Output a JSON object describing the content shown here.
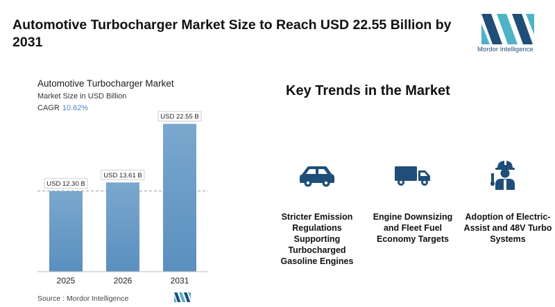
{
  "headline": "Automotive Turbocharger Market Size to Reach USD 22.55 Billion by 2031",
  "brand": {
    "name": "Mordor Intelligence",
    "colors": [
      "#1f4e79",
      "#4fb3c6"
    ]
  },
  "chart_data": {
    "type": "bar",
    "title": "Automotive Turbocharger Market",
    "subtitle": "Market Size in USD Billion",
    "cagr_label": "CAGR",
    "cagr_value": "10.62%",
    "categories": [
      "2025",
      "2026",
      "2031"
    ],
    "values": [
      12.3,
      13.61,
      22.55
    ],
    "data_labels": [
      "USD 12.30 B",
      "USD 13.61 B",
      "USD 22.55 B"
    ],
    "ylim": [
      0,
      24
    ],
    "reference_line_at": 12.3,
    "bar_color_top": "#7aa8ce",
    "bar_color_bottom": "#5a8fbe",
    "grid": false
  },
  "source": "Source : Mordor Intelligence",
  "trends": {
    "title": "Key Trends in the Market",
    "items": [
      {
        "icon": "car-icon",
        "label": "Stricter Emission Regulations Supporting Turbocharged Gasoline Engines"
      },
      {
        "icon": "truck-icon",
        "label": "Engine Downsizing and Fleet Fuel Economy Targets"
      },
      {
        "icon": "engineer-icon",
        "label": "Adoption of Electric-Assist and 48V Turbo Systems"
      }
    ],
    "icon_color": "#1f4e79"
  }
}
